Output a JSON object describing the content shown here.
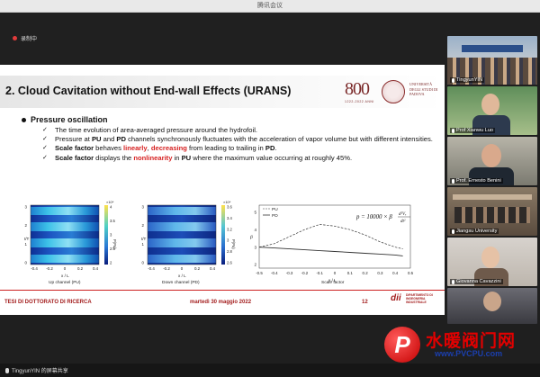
{
  "window": {
    "title": "腾讯会议"
  },
  "recording": {
    "label": "录制中"
  },
  "slide": {
    "title": "2. Cloud Cavitation without End-wall Effects (URANS)",
    "logo_number": "800",
    "logo_sub": "1222-2022 ANNI",
    "university": "UNIVERSITÀ DEGLI STUDI DI PADOVA",
    "bullet": "Pressure oscillation",
    "items": [
      [
        {
          "t": "The time evolution of area-averaged pressure around the hydrofoil."
        }
      ],
      [
        {
          "t": "Pressure at "
        },
        {
          "t": "PU",
          "b": true
        },
        {
          "t": " and "
        },
        {
          "t": "PD",
          "b": true
        },
        {
          "t": " channels synchronously fluctuates with the acceleration of vapor volume but with different intensities."
        }
      ],
      [
        {
          "t": "Scale factor",
          "b": true
        },
        {
          "t": " behaves "
        },
        {
          "t": "linearly",
          "b": true,
          "red": true
        },
        {
          "t": ", "
        },
        {
          "t": "decreasing",
          "b": true,
          "red": true
        },
        {
          "t": " from leading to trailing in "
        },
        {
          "t": "PD",
          "b": true
        },
        {
          "t": "."
        }
      ],
      [
        {
          "t": "Scale factor",
          "b": true
        },
        {
          "t": " displays the "
        },
        {
          "t": "nonlinearity",
          "b": true,
          "red": true
        },
        {
          "t": " in "
        },
        {
          "t": "PU",
          "b": true
        },
        {
          "t": " where the maximum value occurring at roughly 45%."
        }
      ]
    ],
    "plots": {
      "up": {
        "caption": "Up channel (PU)",
        "ylabel": "t/T",
        "xlabel": "x / L",
        "yticks": [
          "3",
          "2",
          "1",
          "0"
        ],
        "xticks": [
          "-0.4",
          "-0.2",
          "0",
          "0.2",
          "0.4"
        ],
        "cbar_exp": "×10⁴",
        "cbar_ticks": [
          "4",
          "3.5",
          "3",
          "2.5",
          "2"
        ],
        "cbar_label": "P(Pa)"
      },
      "down": {
        "caption": "Down channel (PD)",
        "ylabel": "t/T",
        "xlabel": "x / L",
        "yticks": [
          "3",
          "2",
          "1",
          "0"
        ],
        "xticks": [
          "-0.4",
          "-0.2",
          "0",
          "0.2",
          "0.4"
        ],
        "cbar_exp": "×10⁴",
        "cbar_ticks": [
          "3.6",
          "3.4",
          "3.2",
          "3",
          "2.8",
          "2.6"
        ],
        "cbar_label": "P(Pa)"
      },
      "scale": {
        "caption": "Scale factor",
        "ylabel": "β",
        "xlabel": "x / L",
        "yticks": [
          "5",
          "4",
          "3",
          "2"
        ],
        "xticks": [
          "-0.5",
          "-0.4",
          "-0.3",
          "-0.2",
          "-0.1",
          "0",
          "0.1",
          "0.2",
          "0.3",
          "0.4",
          "0.5"
        ],
        "legend": [
          "PU",
          "PD"
        ],
        "formula_lhs": "p = 10000 × β",
        "formula_num": "d²Vᵥ",
        "formula_den": "dt²"
      }
    },
    "chart_data": {
      "type": "line",
      "title": "",
      "xlabel": "x / L",
      "ylabel": "β",
      "xlim": [
        -0.5,
        0.5
      ],
      "ylim": [
        1.8,
        5.4
      ],
      "x": [
        -0.5,
        -0.4,
        -0.3,
        -0.2,
        -0.1,
        0.0,
        0.1,
        0.2,
        0.3,
        0.4,
        0.45
      ],
      "series": [
        {
          "name": "PU",
          "values": [
            3.0,
            3.2,
            3.6,
            4.0,
            4.3,
            4.2,
            4.0,
            3.7,
            3.3,
            3.0,
            2.9
          ]
        },
        {
          "name": "PD",
          "values": [
            3.0,
            2.95,
            2.9,
            2.85,
            2.8,
            2.75,
            2.7,
            2.65,
            2.6,
            2.55,
            2.5
          ]
        }
      ]
    },
    "footer": {
      "left": "TESI DI DOTTORATO DI RICERCA",
      "date": "martedì 30 maggio 2022",
      "page": "12",
      "dept_mark": "dii",
      "dept": "DIPARTIMENTO DI INGEGNERIA INDUSTRIALE"
    }
  },
  "participants": [
    {
      "name": "TingyunYIN"
    },
    {
      "name": "Prof Xianwu Luo"
    },
    {
      "name": "Prof. Ernesto Benini"
    },
    {
      "name": "Jiangsu University"
    },
    {
      "name": "Giovanna Cavazzini"
    },
    {
      "name": ""
    }
  ],
  "share": {
    "label": "TingyunYIN 的屏幕共享"
  },
  "watermark": {
    "mark": "P",
    "cn": "水暖阀门网",
    "url": "www.PVCPU.com"
  }
}
